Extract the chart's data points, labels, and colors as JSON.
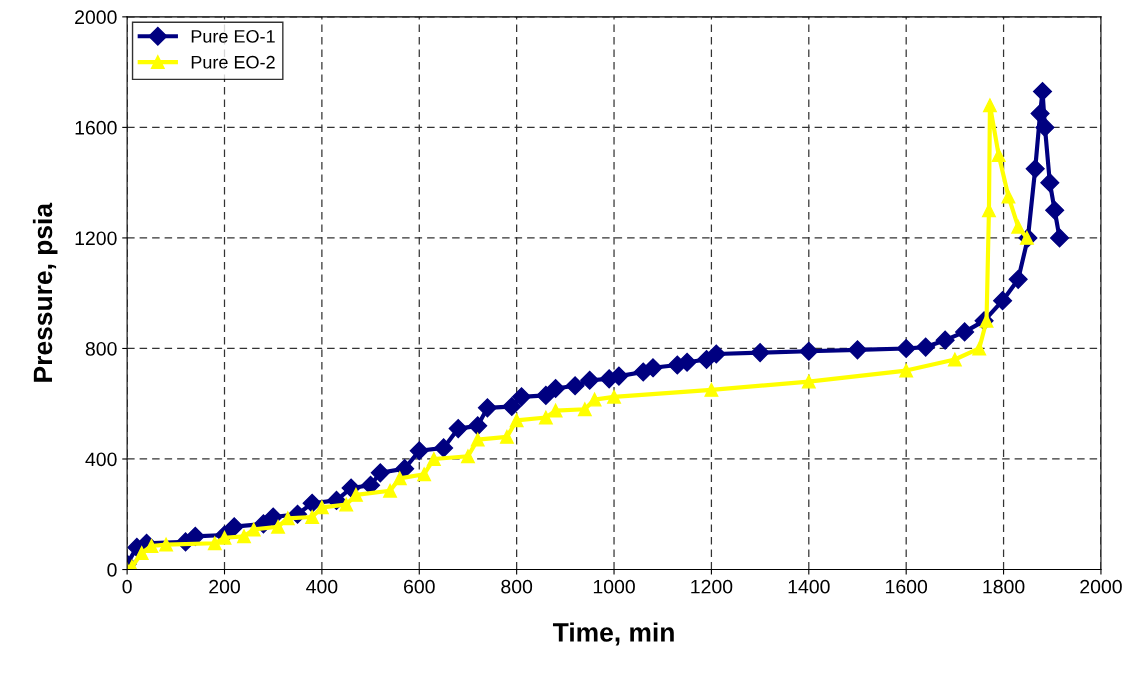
{
  "chart_data": {
    "type": "line",
    "xlabel": "Time, min",
    "ylabel": "Pressure, psia",
    "xlim": [
      0,
      2000
    ],
    "xticks": [
      0,
      200,
      400,
      600,
      800,
      1000,
      1200,
      1400,
      1600,
      1800,
      2000
    ],
    "ylim": [
      0,
      2000
    ],
    "yticks": [
      0,
      400,
      800,
      1200,
      1600,
      2000
    ],
    "grid": true,
    "legend": "top left",
    "line_style": "solid",
    "series": [
      {
        "name": "Pure EO-1",
        "color": "#000080",
        "marker": "diamond",
        "x": [
          0,
          20,
          40,
          120,
          140,
          200,
          220,
          280,
          300,
          350,
          380,
          430,
          460,
          500,
          520,
          570,
          600,
          650,
          680,
          720,
          740,
          790,
          810,
          860,
          880,
          920,
          950,
          990,
          1010,
          1060,
          1080,
          1130,
          1150,
          1190,
          1210,
          1300,
          1400,
          1500,
          1600,
          1640,
          1680,
          1720,
          1760,
          1798,
          1830,
          1850,
          1865,
          1875,
          1880,
          1885,
          1895,
          1905,
          1915
        ],
        "values": [
          20,
          80,
          95,
          100,
          120,
          125,
          155,
          165,
          190,
          200,
          240,
          250,
          295,
          305,
          350,
          365,
          430,
          440,
          510,
          520,
          585,
          590,
          625,
          630,
          655,
          665,
          685,
          690,
          700,
          715,
          730,
          740,
          750,
          760,
          780,
          785,
          790,
          795,
          800,
          805,
          830,
          860,
          900,
          973,
          1050,
          1200,
          1450,
          1650,
          1730,
          1600,
          1400,
          1300,
          1200
        ]
      },
      {
        "name": "Pure EO-2",
        "color": "#ffff00",
        "marker": "triangle",
        "x": [
          0,
          10,
          30,
          50,
          80,
          180,
          200,
          240,
          260,
          310,
          330,
          380,
          400,
          450,
          470,
          540,
          560,
          610,
          630,
          700,
          720,
          780,
          800,
          860,
          880,
          940,
          960,
          1000,
          1200,
          1400,
          1600,
          1700,
          1750,
          1765,
          1770,
          1772,
          1790,
          1810,
          1830,
          1848
        ],
        "values": [
          0,
          10,
          60,
          85,
          90,
          95,
          115,
          120,
          145,
          155,
          185,
          190,
          225,
          235,
          270,
          285,
          330,
          345,
          400,
          410,
          470,
          480,
          540,
          550,
          575,
          580,
          615,
          625,
          650,
          680,
          720,
          760,
          800,
          900,
          1300,
          1680,
          1500,
          1350,
          1240,
          1200
        ]
      }
    ]
  }
}
